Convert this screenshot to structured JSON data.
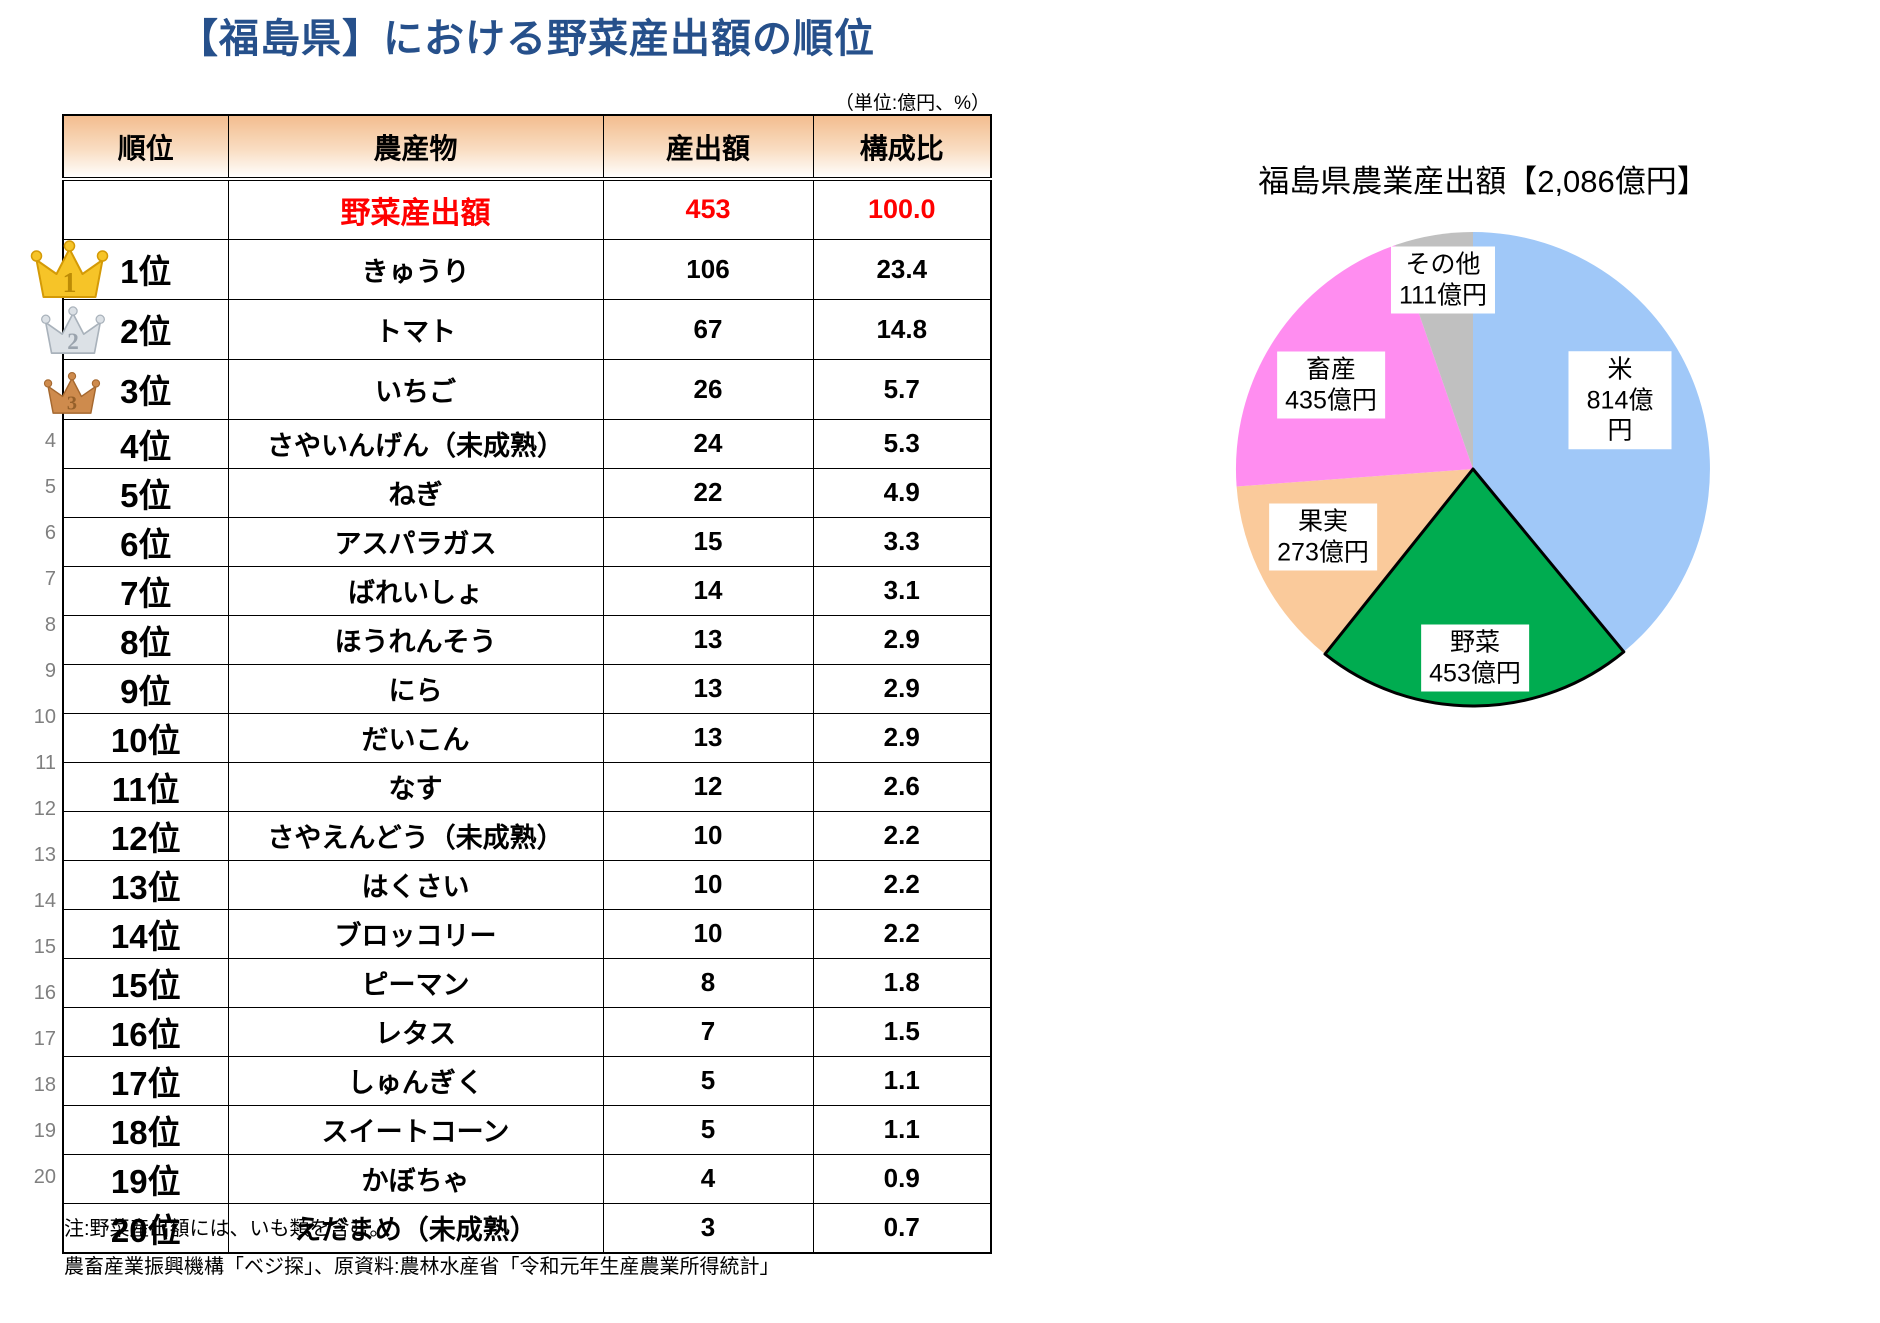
{
  "title": "【福島県】における野菜産出額の順位",
  "unit_note": "（単位:億円、%）",
  "table": {
    "headers": [
      "順位",
      "農産物",
      "産出額",
      "構成比"
    ],
    "total": {
      "rank": "",
      "name": "野菜産出額",
      "output": "453",
      "share": "100.0"
    },
    "rows": [
      {
        "side_num": "1",
        "medal": "gold",
        "rank": "1位",
        "name": "きゅうり",
        "output": "106",
        "share": "23.4"
      },
      {
        "side_num": "2",
        "medal": "silver",
        "rank": "2位",
        "name": "トマト",
        "output": "67",
        "share": "14.8"
      },
      {
        "side_num": "3",
        "medal": "bronze",
        "rank": "3位",
        "name": "いちご",
        "output": "26",
        "share": "5.7"
      },
      {
        "side_num": "4",
        "rank": "4位",
        "name": "さやいんげん（未成熟）",
        "output": "24",
        "share": "5.3"
      },
      {
        "side_num": "5",
        "rank": "5位",
        "name": "ねぎ",
        "output": "22",
        "share": "4.9"
      },
      {
        "side_num": "6",
        "rank": "6位",
        "name": "アスパラガス",
        "output": "15",
        "share": "3.3"
      },
      {
        "side_num": "7",
        "rank": "7位",
        "name": "ばれいしょ",
        "output": "14",
        "share": "3.1"
      },
      {
        "side_num": "8",
        "rank": "8位",
        "name": "ほうれんそう",
        "output": "13",
        "share": "2.9"
      },
      {
        "side_num": "9",
        "rank": "9位",
        "name": "にら",
        "output": "13",
        "share": "2.9"
      },
      {
        "side_num": "10",
        "rank": "10位",
        "name": "だいこん",
        "output": "13",
        "share": "2.9"
      },
      {
        "side_num": "11",
        "rank": "11位",
        "name": "なす",
        "output": "12",
        "share": "2.6"
      },
      {
        "side_num": "12",
        "rank": "12位",
        "name": "さやえんどう（未成熟）",
        "output": "10",
        "share": "2.2"
      },
      {
        "side_num": "13",
        "rank": "13位",
        "name": "はくさい",
        "output": "10",
        "share": "2.2"
      },
      {
        "side_num": "14",
        "rank": "14位",
        "name": "ブロッコリー",
        "output": "10",
        "share": "2.2"
      },
      {
        "side_num": "15",
        "rank": "15位",
        "name": "ピーマン",
        "output": "8",
        "share": "1.8"
      },
      {
        "side_num": "16",
        "rank": "16位",
        "name": "レタス",
        "output": "7",
        "share": "1.5"
      },
      {
        "side_num": "17",
        "rank": "17位",
        "name": "しゅんぎく",
        "output": "5",
        "share": "1.1"
      },
      {
        "side_num": "18",
        "rank": "18位",
        "name": "スイートコーン",
        "output": "5",
        "share": "1.1"
      },
      {
        "side_num": "19",
        "rank": "19位",
        "name": "かぼちゃ",
        "output": "4",
        "share": "0.9"
      },
      {
        "side_num": "20",
        "rank": "20位",
        "name": "えだまめ（未成熟）",
        "output": "3",
        "share": "0.7"
      }
    ]
  },
  "notes": [
    "注:野菜産出額には、いも類を含む。",
    "農畜産業振興機構「ベジ探」、原資料:農林水産省「令和元年生産農業所得統計」"
  ],
  "pie": {
    "title": "福島県農業産出額【2,086億円】",
    "total_label": "2,086億円",
    "emphasized": "野菜",
    "slices": [
      {
        "name": "米",
        "value": 814,
        "label_value": "814億円",
        "color": "#A0C8F8"
      },
      {
        "name": "野菜",
        "value": 453,
        "label_value": "453億円",
        "color": "#00AC50"
      },
      {
        "name": "果実",
        "value": 273,
        "label_value": "273億円",
        "color": "#FACA9B"
      },
      {
        "name": "畜産",
        "value": 435,
        "label_value": "435億円",
        "color": "#FF8DF0"
      },
      {
        "name": "その他",
        "value": 111,
        "label_value": "111億円",
        "color": "#C0C0C0"
      }
    ]
  },
  "colors": {
    "title_blue": "#26508B",
    "total_red": "#FF0000",
    "header_orange_top": "#F3BD8F",
    "crown_gold": "#F6C428",
    "crown_silver": "#DCE1E6",
    "crown_bronze": "#CE8B4D"
  },
  "chart_data": [
    {
      "type": "table",
      "title": "【福島県】における野菜産出額の順位",
      "unit": "億円、%",
      "columns": [
        "順位",
        "農産物",
        "産出額",
        "構成比"
      ],
      "total_row": [
        "",
        "野菜産出額",
        453,
        100.0
      ],
      "rows": [
        [
          "1位",
          "きゅうり",
          106,
          23.4
        ],
        [
          "2位",
          "トマト",
          67,
          14.8
        ],
        [
          "3位",
          "いちご",
          26,
          5.7
        ],
        [
          "4位",
          "さやいんげん（未成熟）",
          24,
          5.3
        ],
        [
          "5位",
          "ねぎ",
          22,
          4.9
        ],
        [
          "6位",
          "アスパラガス",
          15,
          3.3
        ],
        [
          "7位",
          "ばれいしょ",
          14,
          3.1
        ],
        [
          "8位",
          "ほうれんそう",
          13,
          2.9
        ],
        [
          "9位",
          "にら",
          13,
          2.9
        ],
        [
          "10位",
          "だいこん",
          13,
          2.9
        ],
        [
          "11位",
          "なす",
          12,
          2.6
        ],
        [
          "12位",
          "さやえんどう（未成熟）",
          10,
          2.2
        ],
        [
          "13位",
          "はくさい",
          10,
          2.2
        ],
        [
          "14位",
          "ブロッコリー",
          10,
          2.2
        ],
        [
          "15位",
          "ピーマン",
          8,
          1.8
        ],
        [
          "16位",
          "レタス",
          7,
          1.5
        ],
        [
          "17位",
          "しゅんぎく",
          5,
          1.1
        ],
        [
          "18位",
          "スイートコーン",
          5,
          1.1
        ],
        [
          "19位",
          "かぼちゃ",
          4,
          0.9
        ],
        [
          "20位",
          "えだまめ（未成熟）",
          3,
          0.7
        ]
      ],
      "notes": [
        "注:野菜産出額には、いも類を含む。",
        "農畜産業振興機構「ベジ探」、原資料:農林水産省「令和元年生産農業所得統計」"
      ]
    },
    {
      "type": "pie",
      "title": "福島県農業産出額【2,086億円】",
      "total": 2086,
      "categories": [
        "米",
        "野菜",
        "果実",
        "畜産",
        "その他"
      ],
      "values": [
        814,
        453,
        273,
        435,
        111
      ],
      "unit": "億円",
      "colors": [
        "#A0C8F8",
        "#00AC50",
        "#FACA9B",
        "#FF8DF0",
        "#C0C0C0"
      ],
      "start_angle": "12-oclock",
      "direction": "clockwise",
      "emphasized_slice": "野菜",
      "labels_inside": true
    }
  ]
}
